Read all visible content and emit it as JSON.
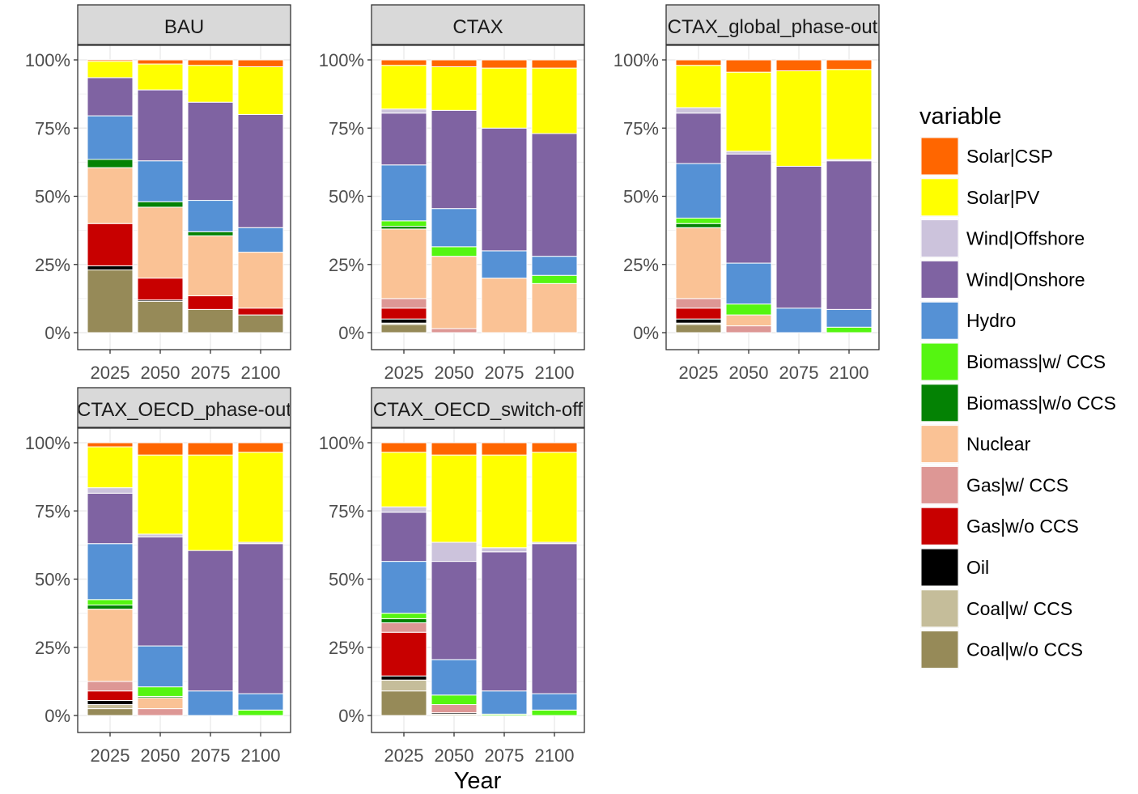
{
  "chart_data": {
    "type": "bar",
    "stacked": "percent",
    "xlabel": "Year",
    "ylabel": "",
    "ylim": [
      0,
      1
    ],
    "y_ticks": [
      "0%",
      "25%",
      "50%",
      "75%",
      "100%"
    ],
    "categories": [
      "2025",
      "2050",
      "2075",
      "2100"
    ],
    "legend": {
      "title": "variable",
      "placement": "right"
    },
    "stack_order_bottom_to_top": [
      "Coal|w/o CCS",
      "Coal|w/ CCS",
      "Oil",
      "Gas|w/o CCS",
      "Gas|w/ CCS",
      "Nuclear",
      "Biomass|w/o CCS",
      "Biomass|w/ CCS",
      "Hydro",
      "Wind|Onshore",
      "Wind|Offshore",
      "Solar|PV",
      "Solar|CSP"
    ],
    "variables": [
      {
        "name": "Solar|CSP",
        "color": "#FF6600"
      },
      {
        "name": "Solar|PV",
        "color": "#FFFF00"
      },
      {
        "name": "Wind|Offshore",
        "color": "#CCC3DC"
      },
      {
        "name": "Wind|Onshore",
        "color": "#7F63A2"
      },
      {
        "name": "Hydro",
        "color": "#5591D5"
      },
      {
        "name": "Biomass|w/ CCS",
        "color": "#55F511"
      },
      {
        "name": "Biomass|w/o CCS",
        "color": "#048204"
      },
      {
        "name": "Nuclear",
        "color": "#FAC295"
      },
      {
        "name": "Gas|w/ CCS",
        "color": "#DD9795"
      },
      {
        "name": "Gas|w/o CCS",
        "color": "#C80000"
      },
      {
        "name": "Oil",
        "color": "#000000"
      },
      {
        "name": "Coal|w/ CCS",
        "color": "#C5BD9A"
      },
      {
        "name": "Coal|w/o CCS",
        "color": "#968A58"
      }
    ],
    "panels": [
      {
        "title": "BAU",
        "bars": {
          "2025": {
            "Coal|w/o CCS": 0.23,
            "Coal|w/ CCS": 0.0,
            "Oil": 0.015,
            "Gas|w/o CCS": 0.155,
            "Gas|w/ CCS": 0.0,
            "Nuclear": 0.205,
            "Biomass|w/o CCS": 0.03,
            "Biomass|w/ CCS": 0.0,
            "Hydro": 0.16,
            "Wind|Onshore": 0.14,
            "Wind|Offshore": 0.0,
            "Solar|PV": 0.06,
            "Solar|CSP": 0.005
          },
          "2050": {
            "Coal|w/o CCS": 0.115,
            "Coal|w/ CCS": 0.0,
            "Oil": 0.005,
            "Gas|w/o CCS": 0.08,
            "Gas|w/ CCS": 0.0,
            "Nuclear": 0.26,
            "Biomass|w/o CCS": 0.02,
            "Biomass|w/ CCS": 0.0,
            "Hydro": 0.15,
            "Wind|Onshore": 0.26,
            "Wind|Offshore": 0.0,
            "Solar|PV": 0.095,
            "Solar|CSP": 0.015
          },
          "2075": {
            "Coal|w/o CCS": 0.085,
            "Coal|w/ CCS": 0.0,
            "Oil": 0.0,
            "Gas|w/o CCS": 0.05,
            "Gas|w/ CCS": 0.0,
            "Nuclear": 0.22,
            "Biomass|w/o CCS": 0.015,
            "Biomass|w/ CCS": 0.0,
            "Hydro": 0.115,
            "Wind|Onshore": 0.36,
            "Wind|Offshore": 0.0,
            "Solar|PV": 0.135,
            "Solar|CSP": 0.02
          },
          "2100": {
            "Coal|w/o CCS": 0.065,
            "Coal|w/ CCS": 0.0,
            "Oil": 0.0,
            "Gas|w/o CCS": 0.025,
            "Gas|w/ CCS": 0.0,
            "Nuclear": 0.205,
            "Biomass|w/o CCS": 0.0,
            "Biomass|w/ CCS": 0.0,
            "Hydro": 0.09,
            "Wind|Onshore": 0.415,
            "Wind|Offshore": 0.0,
            "Solar|PV": 0.175,
            "Solar|CSP": 0.025
          }
        }
      },
      {
        "title": "CTAX",
        "bars": {
          "2025": {
            "Coal|w/o CCS": 0.03,
            "Coal|w/ CCS": 0.005,
            "Oil": 0.015,
            "Gas|w/o CCS": 0.04,
            "Gas|w/ CCS": 0.035,
            "Nuclear": 0.255,
            "Biomass|w/o CCS": 0.01,
            "Biomass|w/ CCS": 0.02,
            "Hydro": 0.205,
            "Wind|Onshore": 0.19,
            "Wind|Offshore": 0.015,
            "Solar|PV": 0.16,
            "Solar|CSP": 0.02
          },
          "2050": {
            "Coal|w/o CCS": 0.0,
            "Coal|w/ CCS": 0.0,
            "Oil": 0.0,
            "Gas|w/o CCS": 0.0,
            "Gas|w/ CCS": 0.015,
            "Nuclear": 0.265,
            "Biomass|w/o CCS": 0.0,
            "Biomass|w/ CCS": 0.035,
            "Hydro": 0.14,
            "Wind|Onshore": 0.36,
            "Wind|Offshore": 0.0,
            "Solar|PV": 0.16,
            "Solar|CSP": 0.025
          },
          "2075": {
            "Coal|w/o CCS": 0.0,
            "Coal|w/ CCS": 0.0,
            "Oil": 0.0,
            "Gas|w/o CCS": 0.0,
            "Gas|w/ CCS": 0.0,
            "Nuclear": 0.2,
            "Biomass|w/o CCS": 0.0,
            "Biomass|w/ CCS": 0.0,
            "Hydro": 0.1,
            "Wind|Onshore": 0.45,
            "Wind|Offshore": 0.0,
            "Solar|PV": 0.22,
            "Solar|CSP": 0.03
          },
          "2100": {
            "Coal|w/o CCS": 0.0,
            "Coal|w/ CCS": 0.0,
            "Oil": 0.0,
            "Gas|w/o CCS": 0.0,
            "Gas|w/ CCS": 0.0,
            "Nuclear": 0.18,
            "Biomass|w/o CCS": 0.0,
            "Biomass|w/ CCS": 0.03,
            "Hydro": 0.07,
            "Wind|Onshore": 0.45,
            "Wind|Offshore": 0.0,
            "Solar|PV": 0.24,
            "Solar|CSP": 0.03
          }
        }
      },
      {
        "title": "CTAX_global_phase-out",
        "bars": {
          "2025": {
            "Coal|w/o CCS": 0.03,
            "Coal|w/ CCS": 0.005,
            "Oil": 0.015,
            "Gas|w/o CCS": 0.04,
            "Gas|w/ CCS": 0.035,
            "Nuclear": 0.26,
            "Biomass|w/o CCS": 0.015,
            "Biomass|w/ CCS": 0.02,
            "Hydro": 0.2,
            "Wind|Onshore": 0.185,
            "Wind|Offshore": 0.02,
            "Solar|PV": 0.155,
            "Solar|CSP": 0.02
          },
          "2050": {
            "Coal|w/o CCS": 0.0,
            "Coal|w/ CCS": 0.0,
            "Oil": 0.0,
            "Gas|w/o CCS": 0.0,
            "Gas|w/ CCS": 0.025,
            "Nuclear": 0.04,
            "Biomass|w/o CCS": 0.0,
            "Biomass|w/ CCS": 0.04,
            "Hydro": 0.15,
            "Wind|Onshore": 0.4,
            "Wind|Offshore": 0.01,
            "Solar|PV": 0.29,
            "Solar|CSP": 0.045
          },
          "2075": {
            "Coal|w/o CCS": 0.0,
            "Coal|w/ CCS": 0.0,
            "Oil": 0.0,
            "Gas|w/o CCS": 0.0,
            "Gas|w/ CCS": 0.0,
            "Nuclear": 0.0,
            "Biomass|w/o CCS": 0.0,
            "Biomass|w/ CCS": 0.0,
            "Hydro": 0.09,
            "Wind|Onshore": 0.52,
            "Wind|Offshore": 0.0,
            "Solar|PV": 0.35,
            "Solar|CSP": 0.04
          },
          "2100": {
            "Coal|w/o CCS": 0.0,
            "Coal|w/ CCS": 0.0,
            "Oil": 0.0,
            "Gas|w/o CCS": 0.0,
            "Gas|w/ CCS": 0.0,
            "Nuclear": 0.0,
            "Biomass|w/o CCS": 0.0,
            "Biomass|w/ CCS": 0.02,
            "Hydro": 0.065,
            "Wind|Onshore": 0.545,
            "Wind|Offshore": 0.005,
            "Solar|PV": 0.33,
            "Solar|CSP": 0.035
          }
        }
      },
      {
        "title": "CTAX_OECD_phase-out",
        "bars": {
          "2025": {
            "Coal|w/o CCS": 0.025,
            "Coal|w/ CCS": 0.015,
            "Oil": 0.015,
            "Gas|w/o CCS": 0.035,
            "Gas|w/ CCS": 0.035,
            "Nuclear": 0.265,
            "Biomass|w/o CCS": 0.015,
            "Biomass|w/ CCS": 0.02,
            "Hydro": 0.205,
            "Wind|Onshore": 0.185,
            "Wind|Offshore": 0.02,
            "Solar|PV": 0.15,
            "Solar|CSP": 0.015
          },
          "2050": {
            "Coal|w/o CCS": 0.0,
            "Coal|w/ CCS": 0.0,
            "Oil": 0.0,
            "Gas|w/o CCS": 0.0,
            "Gas|w/ CCS": 0.025,
            "Nuclear": 0.04,
            "Biomass|w/o CCS": 0.005,
            "Biomass|w/ CCS": 0.035,
            "Hydro": 0.15,
            "Wind|Onshore": 0.4,
            "Wind|Offshore": 0.01,
            "Solar|PV": 0.29,
            "Solar|CSP": 0.045
          },
          "2075": {
            "Coal|w/o CCS": 0.0,
            "Coal|w/ CCS": 0.0,
            "Oil": 0.0,
            "Gas|w/o CCS": 0.0,
            "Gas|w/ CCS": 0.0,
            "Nuclear": 0.0,
            "Biomass|w/o CCS": 0.0,
            "Biomass|w/ CCS": 0.0,
            "Hydro": 0.09,
            "Wind|Onshore": 0.515,
            "Wind|Offshore": 0.0,
            "Solar|PV": 0.35,
            "Solar|CSP": 0.045
          },
          "2100": {
            "Coal|w/o CCS": 0.0,
            "Coal|w/ CCS": 0.0,
            "Oil": 0.0,
            "Gas|w/o CCS": 0.0,
            "Gas|w/ CCS": 0.0,
            "Nuclear": 0.0,
            "Biomass|w/o CCS": 0.0,
            "Biomass|w/ CCS": 0.02,
            "Hydro": 0.06,
            "Wind|Onshore": 0.55,
            "Wind|Offshore": 0.005,
            "Solar|PV": 0.33,
            "Solar|CSP": 0.035
          }
        }
      },
      {
        "title": "CTAX_OECD_switch-off",
        "bars": {
          "2025": {
            "Coal|w/o CCS": 0.09,
            "Coal|w/ CCS": 0.04,
            "Oil": 0.015,
            "Gas|w/o CCS": 0.16,
            "Gas|w/ CCS": 0.035,
            "Nuclear": 0.0,
            "Biomass|w/o CCS": 0.015,
            "Biomass|w/ CCS": 0.02,
            "Hydro": 0.19,
            "Wind|Onshore": 0.18,
            "Wind|Offshore": 0.02,
            "Solar|PV": 0.2,
            "Solar|CSP": 0.035
          },
          "2050": {
            "Coal|w/o CCS": 0.0,
            "Coal|w/ CCS": 0.005,
            "Oil": 0.005,
            "Gas|w/o CCS": 0.0,
            "Gas|w/ CCS": 0.03,
            "Nuclear": 0.0,
            "Biomass|w/o CCS": 0.0,
            "Biomass|w/ CCS": 0.035,
            "Hydro": 0.13,
            "Wind|Onshore": 0.36,
            "Wind|Offshore": 0.07,
            "Solar|PV": 0.32,
            "Solar|CSP": 0.045
          },
          "2075": {
            "Coal|w/o CCS": 0.0,
            "Coal|w/ CCS": 0.0,
            "Oil": 0.0,
            "Gas|w/o CCS": 0.0,
            "Gas|w/ CCS": 0.0,
            "Nuclear": 0.0,
            "Biomass|w/o CCS": 0.0,
            "Biomass|w/ CCS": 0.005,
            "Hydro": 0.085,
            "Wind|Onshore": 0.51,
            "Wind|Offshore": 0.015,
            "Solar|PV": 0.34,
            "Solar|CSP": 0.045
          },
          "2100": {
            "Coal|w/o CCS": 0.0,
            "Coal|w/ CCS": 0.0,
            "Oil": 0.0,
            "Gas|w/o CCS": 0.0,
            "Gas|w/ CCS": 0.0,
            "Nuclear": 0.0,
            "Biomass|w/o CCS": 0.0,
            "Biomass|w/ CCS": 0.02,
            "Hydro": 0.06,
            "Wind|Onshore": 0.55,
            "Wind|Offshore": 0.005,
            "Solar|PV": 0.33,
            "Solar|CSP": 0.035
          }
        }
      }
    ]
  }
}
